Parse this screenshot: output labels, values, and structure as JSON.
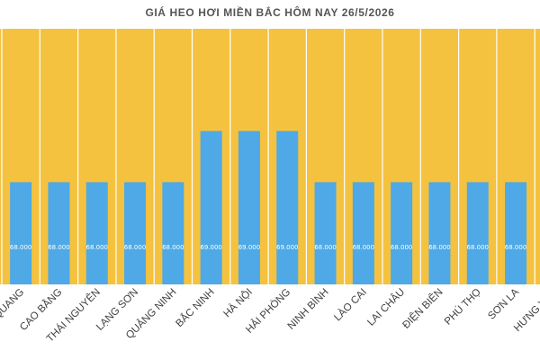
{
  "chart_data": {
    "type": "bar",
    "title": "GIÁ HEO HƠI MIỀN BẮC HÔM NAY 26/5/2026",
    "xlabel": "",
    "ylabel": "",
    "categories": [
      "TUYÊN QUANG",
      "CAO BẰNG",
      "THÁI NGUYÊN",
      "LẠNG SƠN",
      "QUẢNG NINH",
      "BẮC NINH",
      "HÀ NỘI",
      "HẢI PHÒNG",
      "NINH BÌNH",
      "LÀO CAI",
      "LAI CHÂU",
      "ĐIỆN BIÊN",
      "PHÚ THỌ",
      "SƠN LA",
      "HƯNG YÊN"
    ],
    "values": [
      68000,
      68000,
      68000,
      68000,
      68000,
      69000,
      69000,
      69000,
      68000,
      68000,
      68000,
      68000,
      68000,
      68000,
      68000
    ],
    "value_labels": [
      "68.000",
      "68.000",
      "68.000",
      "68.000",
      "68.000",
      "69.000",
      "69.000",
      "69.000",
      "68.000",
      "68.000",
      "68.000",
      "68.000",
      "68.000",
      "68.000",
      "68.000"
    ],
    "ylim": [
      66000,
      71000
    ],
    "grid": false,
    "legend": "none",
    "colors": {
      "bar": "#4EA9E6",
      "plot_background": "#F4C23F",
      "column_separator": "#FFFFFF"
    }
  }
}
